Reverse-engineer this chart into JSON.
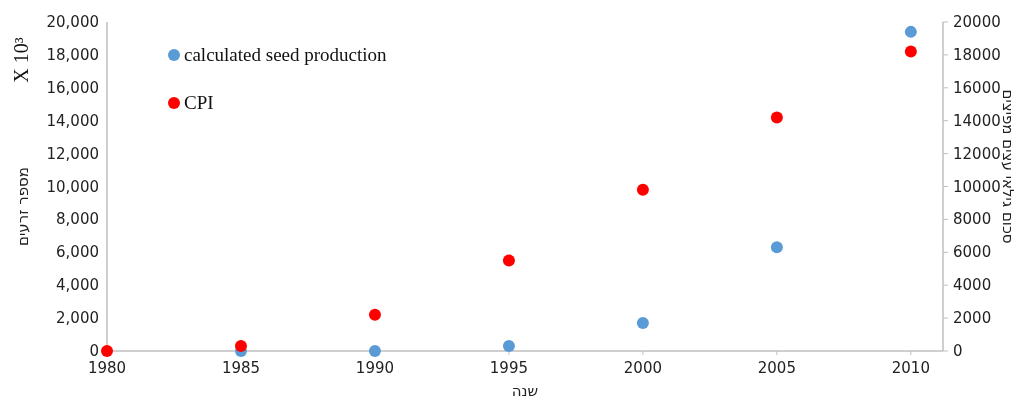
{
  "chart_data": {
    "type": "scatter",
    "xlabel": "שנה",
    "ylabel": "מספר זרעים",
    "y2label": "סכום גילאי עצים מפיצים",
    "annotations": [
      "X 10³"
    ],
    "x": [
      1980,
      1985,
      1990,
      1995,
      2000,
      2005,
      2010
    ],
    "xlim": [
      1980,
      2011.2
    ],
    "xticks": [
      1980,
      1985,
      1990,
      1995,
      2000,
      2005,
      2010
    ],
    "ylim": [
      0,
      20000
    ],
    "yticks": [
      {
        "value": 0,
        "label": "0"
      },
      {
        "value": 2000,
        "label": "2,000"
      },
      {
        "value": 4000,
        "label": "4,000"
      },
      {
        "value": 6000,
        "label": "6,000"
      },
      {
        "value": 8000,
        "label": "8,000"
      },
      {
        "value": 10000,
        "label": "10,000"
      },
      {
        "value": 12000,
        "label": "12,000"
      },
      {
        "value": 14000,
        "label": "14,000"
      },
      {
        "value": 16000,
        "label": "16,000"
      },
      {
        "value": 18000,
        "label": "18,000"
      },
      {
        "value": 20000,
        "label": "20,000"
      }
    ],
    "y2lim": [
      0,
      20000
    ],
    "y2ticks": [
      0,
      2000,
      4000,
      6000,
      8000,
      10000,
      12000,
      14000,
      16000,
      18000,
      20000
    ],
    "series": [
      {
        "name": "calculated seed production",
        "color": "#5b9bd5",
        "values": [
          null,
          0,
          0,
          300,
          1700,
          6300,
          19400
        ]
      },
      {
        "name": "CPI",
        "color": "#ff0000",
        "axis": "y2",
        "values": [
          0,
          300,
          2200,
          5500,
          9800,
          14200,
          18200
        ]
      }
    ],
    "marker": "circle",
    "legend": "top left",
    "grid": false
  }
}
